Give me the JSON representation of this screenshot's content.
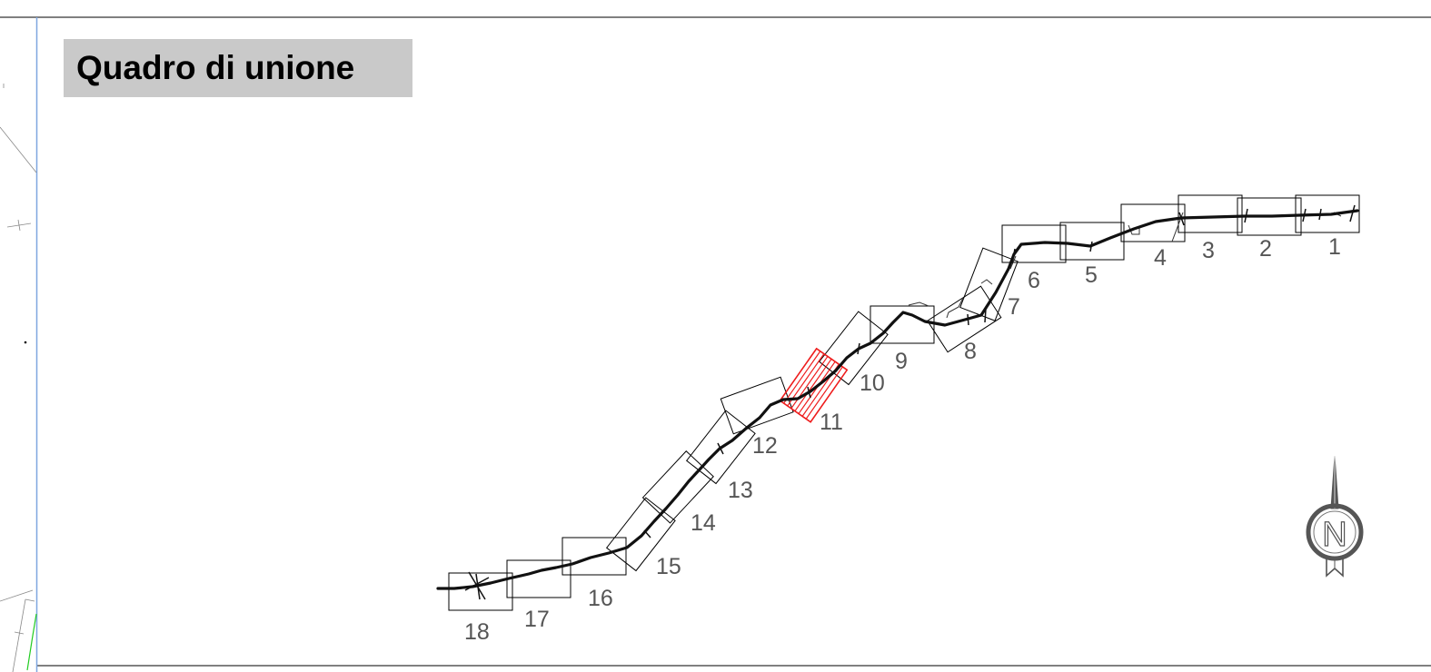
{
  "title": "Quadro di unione",
  "selected_sheet": "11",
  "colors": {
    "background": "#ffffff",
    "title_box": "#c9c9c9",
    "route": "#111111",
    "sheet_frame": "#000000",
    "selected_sheet": "#ee1c1c",
    "label_text": "#555555",
    "border_blue": "#7ea6e0",
    "accent_green": "#22cc22"
  },
  "sheets": [
    {
      "id": "1",
      "label": "1"
    },
    {
      "id": "2",
      "label": "2"
    },
    {
      "id": "3",
      "label": "3"
    },
    {
      "id": "4",
      "label": "4"
    },
    {
      "id": "5",
      "label": "5"
    },
    {
      "id": "6",
      "label": "6"
    },
    {
      "id": "7",
      "label": "7"
    },
    {
      "id": "8",
      "label": "8"
    },
    {
      "id": "9",
      "label": "9"
    },
    {
      "id": "10",
      "label": "10"
    },
    {
      "id": "11",
      "label": "11"
    },
    {
      "id": "12",
      "label": "12"
    },
    {
      "id": "13",
      "label": "13"
    },
    {
      "id": "14",
      "label": "14"
    },
    {
      "id": "15",
      "label": "15"
    },
    {
      "id": "16",
      "label": "16"
    },
    {
      "id": "17",
      "label": "17"
    },
    {
      "id": "18",
      "label": "18"
    }
  ],
  "north_arrow": {
    "letter": "N",
    "icon": "north-arrow-icon"
  }
}
